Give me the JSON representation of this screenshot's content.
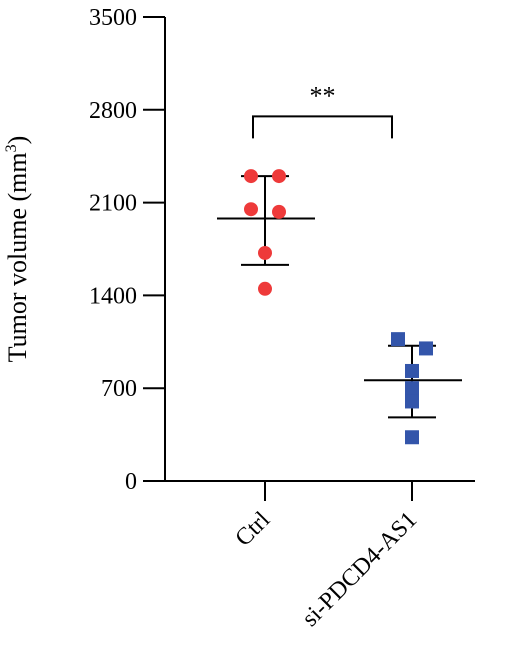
{
  "chart_data": {
    "type": "scatter",
    "title": "",
    "ylabel": "Tumor volume (mm",
    "ylabel_superscript": "3",
    "ylabel_close": ")",
    "ylim": [
      0,
      3500
    ],
    "yticks": [
      0,
      700,
      1400,
      2100,
      2800,
      3500
    ],
    "ytick_labels": [
      "0",
      "700",
      "1400",
      "2100",
      "2800",
      "3500"
    ],
    "categories": [
      "Ctrl",
      "si-PDCD4-AS1"
    ],
    "grid": false,
    "series": [
      {
        "category": "Ctrl",
        "marker": "circle",
        "color": "#ee3a3a",
        "points": [
          2300,
          2300,
          2050,
          2030,
          1720,
          1450
        ],
        "mean": 1980,
        "error_upper": 2300,
        "error_lower": 1630
      },
      {
        "category": "si-PDCD4-AS1",
        "marker": "square",
        "color": "#3355aa",
        "points": [
          1070,
          1000,
          830,
          700,
          600,
          330
        ],
        "mean": 760,
        "error_upper": 1020,
        "error_lower": 480
      }
    ],
    "annotations": [
      {
        "text": "**",
        "between": [
          "Ctrl",
          "si-PDCD4-AS1"
        ],
        "y": 2750
      }
    ]
  }
}
